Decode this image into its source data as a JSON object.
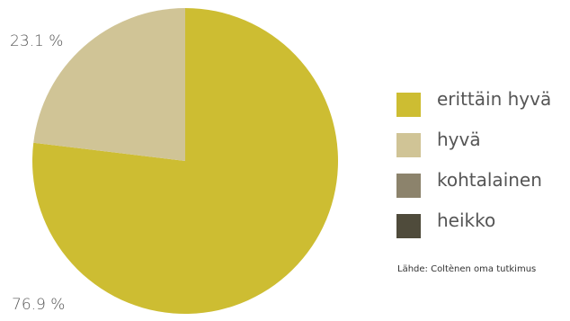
{
  "chart_data": {
    "type": "pie",
    "title": "",
    "slices": [
      {
        "label": "erittäin hyvä",
        "value": 76.9,
        "value_label": "76.9 %",
        "color": "#cdbd32"
      },
      {
        "label": "hyvä",
        "value": 23.1,
        "value_label": "23.1 %",
        "color": "#d0c496"
      },
      {
        "label": "kohtalainen",
        "value": 0,
        "color": "#8c836c"
      },
      {
        "label": "heikko",
        "value": 0,
        "color": "#4f4b3b"
      }
    ],
    "legend_position": "right"
  },
  "source_note": "Lähde: Coltènen oma tutkimus"
}
